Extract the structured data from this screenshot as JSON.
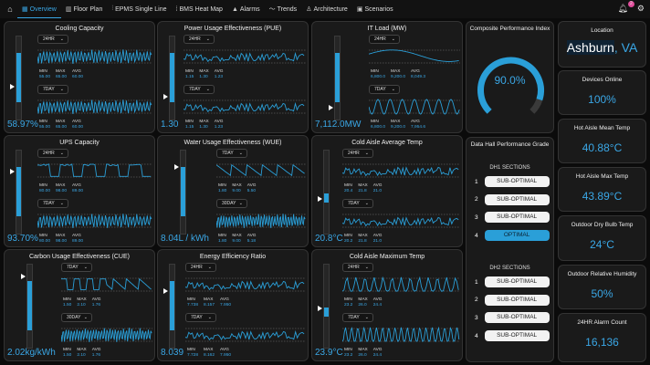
{
  "nav": {
    "tabs": [
      {
        "label": "Overview",
        "icon": "grid-icon",
        "glyph": "▦",
        "active": true
      },
      {
        "label": "Floor Plan",
        "icon": "floor-plan-icon",
        "glyph": "▥"
      },
      {
        "label": "EPMS Single Line",
        "icon": "single-line-icon",
        "glyph": "⫶"
      },
      {
        "label": "BMS Heat Map",
        "icon": "heat-map-icon",
        "glyph": "⁞"
      },
      {
        "label": "Alarms",
        "icon": "bell-icon",
        "glyph": "▲"
      },
      {
        "label": "Trends",
        "icon": "trend-icon",
        "glyph": "〜"
      },
      {
        "label": "Architecture",
        "icon": "hierarchy-icon",
        "glyph": "♙"
      },
      {
        "label": "Scenarios",
        "icon": "scenario-icon",
        "glyph": "▣"
      }
    ],
    "notification_count": "2"
  },
  "accent": "#2a9fd8",
  "panels": [
    {
      "title": "Cooling Capacity",
      "value": "58.97%",
      "gauge": {
        "band": [
          0.21,
          0.8
        ],
        "marker": 0.4
      },
      "charts": [
        {
          "range": "24HR",
          "pattern": "noise-fast",
          "min": "55.00",
          "max": "65.00",
          "avg": "60.00"
        },
        {
          "range": "7DAY",
          "pattern": "noise-fast",
          "min": "55.00",
          "max": "65.00",
          "avg": "60.00"
        }
      ]
    },
    {
      "title": "Power Usage Effectiveness (PUE)",
      "value": "1.30",
      "gauge": {
        "band": [
          0.21,
          0.8
        ],
        "marker": 0.28
      },
      "charts": [
        {
          "range": "24HR",
          "pattern": "noise",
          "min": "1.15",
          "max": "1.30",
          "avg": "1.23"
        },
        {
          "range": "7DAY",
          "pattern": "noise",
          "min": "1.15",
          "max": "1.30",
          "avg": "1.23"
        }
      ]
    },
    {
      "title": "IT Load (MW)",
      "value": "7,112.0MW",
      "gauge": {
        "band": [
          0.21,
          0.8
        ],
        "marker": 0.14
      },
      "charts": [
        {
          "range": "24HR",
          "pattern": "slow-sine",
          "min": "6,800.0",
          "max": "9,200.0",
          "avg": "8,049.3"
        },
        {
          "range": "7DAY",
          "pattern": "sine",
          "min": "6,800.0",
          "max": "9,200.0",
          "avg": "7,954.6"
        }
      ]
    },
    {
      "title": "UPS Capacity",
      "value": "93.70%",
      "gauge": {
        "band": [
          0.21,
          0.8
        ],
        "marker": 0.75
      },
      "charts": [
        {
          "range": "24HR",
          "pattern": "square",
          "min": "80.00",
          "max": "98.00",
          "avg": "89.00"
        },
        {
          "range": "7DAY",
          "pattern": "noise-fast",
          "min": "80.00",
          "max": "98.00",
          "avg": "89.00"
        }
      ]
    },
    {
      "title": "Water Usage Effectiveness (WUE)",
      "value": "8.04L / kWh",
      "gauge": {
        "band": [
          0.21,
          0.8
        ],
        "marker": 0.8
      },
      "charts": [
        {
          "range": "7DAY",
          "pattern": "sawtooth",
          "min": "1.80",
          "max": "9.00",
          "avg": "5.50"
        },
        {
          "range": "30DAY",
          "pattern": "noise-fast",
          "min": "1.80",
          "max": "9.00",
          "avg": "5.18"
        }
      ]
    },
    {
      "title": "Cold Aisle Average Temp",
      "value": "20.8°C",
      "gauge": {
        "band": [
          0.37,
          0.48
        ],
        "marker": 0.42
      },
      "charts": [
        {
          "range": "24HR",
          "pattern": "noise",
          "min": "20.4",
          "max": "21.8",
          "avg": "21.0"
        },
        {
          "range": "7DAY",
          "pattern": "noise",
          "min": "20.2",
          "max": "21.8",
          "avg": "21.0"
        }
      ]
    },
    {
      "title": "Carbon Usage Effectiveness (CUE)",
      "value": "2.02kg/kWh",
      "gauge": {
        "band": [
          0.21,
          0.8
        ],
        "marker": 0.86
      },
      "charts": [
        {
          "range": "7DAY",
          "pattern": "square-saw",
          "min": "1.50",
          "max": "2.10",
          "avg": "1.76"
        },
        {
          "range": "30DAY",
          "pattern": "noise-fast",
          "min": "1.50",
          "max": "2.10",
          "avg": "1.76"
        }
      ]
    },
    {
      "title": "Energy Efficiency Ratio",
      "value": "8.039",
      "gauge": {
        "band": [
          0.21,
          0.8
        ],
        "marker": 0.68
      },
      "charts": [
        {
          "range": "24HR",
          "pattern": "noise",
          "min": "7.738",
          "max": "8.157",
          "avg": "7.950"
        },
        {
          "range": "7DAY",
          "pattern": "noise",
          "min": "7.728",
          "max": "8.162",
          "avg": "7.950"
        }
      ]
    },
    {
      "title": "Cold Aisle Maximum Temp",
      "value": "23.9°C",
      "gauge": {
        "band": [
          0.37,
          0.48
        ],
        "marker": 0.47
      },
      "charts": [
        {
          "range": "24HR",
          "pattern": "peaks",
          "min": "23.2",
          "max": "26.0",
          "avg": "24.4"
        },
        {
          "range": "7DAY",
          "pattern": "peaks-fast",
          "min": "23.2",
          "max": "26.0",
          "avg": "24.4"
        }
      ]
    }
  ],
  "stat_labels": {
    "min": "MIN",
    "max": "MAX",
    "avg": "AVG"
  },
  "composite": {
    "title": "Composite Performance Index",
    "value": "90.0%",
    "fraction": 0.9
  },
  "data_hall": {
    "title": "Data Hall Performance Grade",
    "groups": [
      {
        "label": "DH1 SECTIONS",
        "rows": [
          {
            "n": "1",
            "grade": "SUB-OPTIMAL"
          },
          {
            "n": "2",
            "grade": "SUB-OPTIMAL"
          },
          {
            "n": "3",
            "grade": "SUB-OPTIMAL"
          },
          {
            "n": "4",
            "grade": "OPTIMAL"
          }
        ]
      },
      {
        "label": "DH2 SECTIONS",
        "rows": [
          {
            "n": "1",
            "grade": "SUB-OPTIMAL"
          },
          {
            "n": "2",
            "grade": "SUB-OPTIMAL"
          },
          {
            "n": "3",
            "grade": "SUB-OPTIMAL"
          },
          {
            "n": "4",
            "grade": "SUB-OPTIMAL"
          }
        ]
      }
    ]
  },
  "cards": [
    {
      "title": "Location",
      "city": "Ashburn",
      "state": ", VA"
    },
    {
      "title": "Devices Online",
      "value": "100%"
    },
    {
      "title": "Hot Aisle Mean Temp",
      "value": "40.88°C"
    },
    {
      "title": "Hot Aisle Max Temp",
      "value": "43.89°C"
    },
    {
      "title": "Outdoor Dry Bulb Temp",
      "value": "24°C"
    },
    {
      "title": "Outdoor Relative Humidity",
      "value": "50%"
    },
    {
      "title": "24HR Alarm Count",
      "value": "16,136"
    }
  ]
}
